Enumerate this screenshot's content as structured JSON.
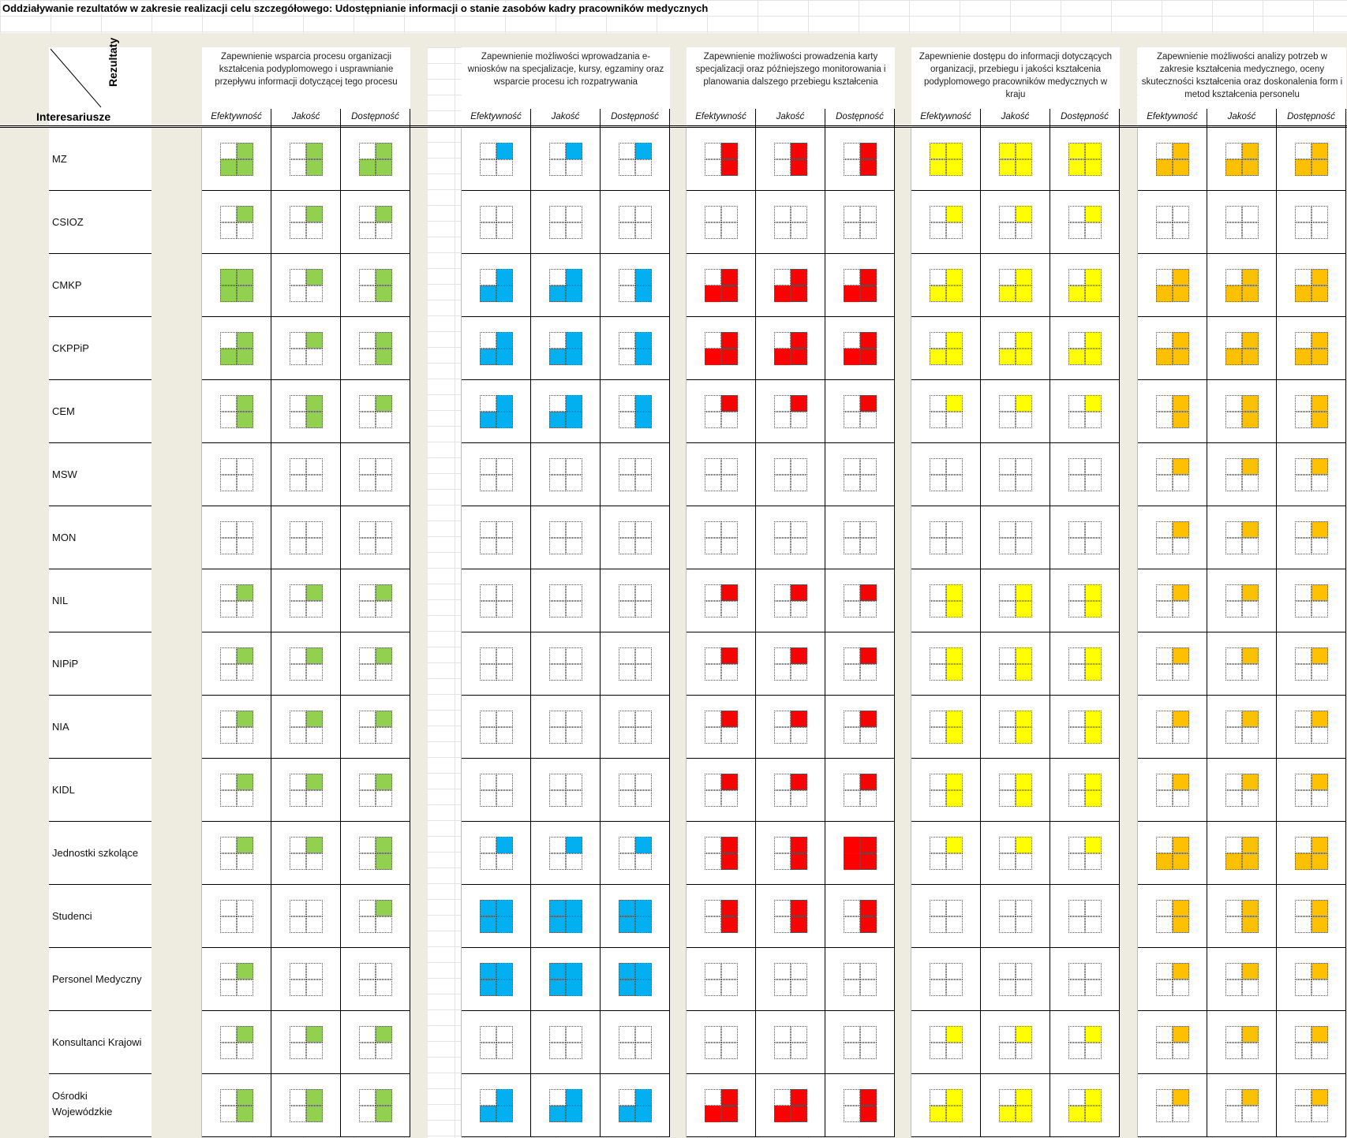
{
  "title": "Oddziaływanie rezultatów w zakresie realizacji celu szczegółowego: Udostępnianie informacji o stanie zasobów kadry pracowników medycznych",
  "corner": {
    "columns_label": "Rezultaty",
    "rows_label": "Interesariusze"
  },
  "colors": {
    "green": "#92d050",
    "blue": "#00b0f0",
    "red": "#ff0000",
    "yellow": "#ffff00",
    "orange": "#ffc000"
  },
  "subheaders": [
    "Efektywność",
    "Jakość",
    "Dostępność"
  ],
  "groups": [
    {
      "label": "Zapewnienie wsparcia procesu organizacji kształcenia podyplomowego i usprawnianie przepływu informacji dotyczącej tego procesu",
      "color": "green"
    },
    {
      "label": "Zapewnienie możliwości wprowadzania e-wniosków na specjalizacje, kursy, egzaminy oraz wsparcie procesu ich rozpatrywania",
      "color": "blue"
    },
    {
      "label": "Zapewnienie możliwości prowadzenia karty specjalizacji oraz późniejszego monitorowania i planowania dalszego przebiegu kształcenia",
      "color": "red"
    },
    {
      "label": "Zapewnienie dostępu do informacji dotyczących organizacji, przebiegu i jakości kształcenia podyplomowego pracowników medycznych w kraju",
      "color": "yellow"
    },
    {
      "label": "Zapewnienie możliwości analizy potrzeb w zakresie kształcenia medycznego, oceny skuteczności kształcenia oraz doskonalenia form i metod kształcenia personelu",
      "color": "orange"
    }
  ],
  "rows": [
    {
      "name": "MZ",
      "cells": [
        [
          "tr,bl,br",
          "tr,br",
          "tr,bl,br"
        ],
        [
          "tr",
          "tr",
          "tr"
        ],
        [
          "tr,br",
          "tr,br",
          "tr,br"
        ],
        [
          "tl,tr,bl,br",
          "tl,tr,bl,br",
          "tl,tr,bl,br"
        ],
        [
          "tr,bl,br",
          "tr,bl,br",
          "tr,bl,br"
        ]
      ]
    },
    {
      "name": "CSIOZ",
      "cells": [
        [
          "tr",
          "tr",
          "tr"
        ],
        [
          "",
          "",
          ""
        ],
        [
          "",
          "",
          ""
        ],
        [
          "tr",
          "tr",
          "tr"
        ],
        [
          "",
          "",
          ""
        ]
      ]
    },
    {
      "name": "CMKP",
      "cells": [
        [
          "tl,tr,bl,br",
          "tr",
          "tr,br"
        ],
        [
          "tr,bl,br",
          "tr,bl,br",
          "tr,br"
        ],
        [
          "tr,bl,br",
          "tr,bl,br",
          "tr,bl,br"
        ],
        [
          "tr,bl,br",
          "tr,bl,br",
          "tr,bl,br"
        ],
        [
          "tr,bl,br",
          "tr,bl,br",
          "tr,bl,br"
        ]
      ]
    },
    {
      "name": "CKPPiP",
      "cells": [
        [
          "tr,bl,br",
          "tr",
          "tr,br"
        ],
        [
          "tr,bl,br",
          "tr,bl,br",
          "tr,br"
        ],
        [
          "tr,bl,br",
          "tr,bl,br",
          "tr,bl,br"
        ],
        [
          "tr,bl,br",
          "tr,bl,br",
          "tr,bl,br"
        ],
        [
          "tr,bl,br",
          "tr,bl,br",
          "tr,bl,br"
        ]
      ]
    },
    {
      "name": "CEM",
      "cells": [
        [
          "tr,br",
          "tr,br",
          "tr"
        ],
        [
          "tr,bl,br",
          "tr,bl,br",
          "tr,br"
        ],
        [
          "tr",
          "tr",
          "tr"
        ],
        [
          "tr",
          "tr",
          "tr"
        ],
        [
          "tr,br",
          "tr,br",
          "tr,br"
        ]
      ]
    },
    {
      "name": "MSW",
      "cells": [
        [
          "",
          "",
          ""
        ],
        [
          "",
          "",
          ""
        ],
        [
          "",
          "",
          ""
        ],
        [
          "",
          "",
          ""
        ],
        [
          "tr",
          "tr",
          "tr"
        ]
      ]
    },
    {
      "name": "MON",
      "cells": [
        [
          "",
          "",
          ""
        ],
        [
          "",
          "",
          ""
        ],
        [
          "",
          "",
          ""
        ],
        [
          "",
          "",
          ""
        ],
        [
          "tr",
          "tr",
          "tr"
        ]
      ]
    },
    {
      "name": "NIL",
      "cells": [
        [
          "tr",
          "tr",
          "tr"
        ],
        [
          "",
          "",
          ""
        ],
        [
          "tr",
          "tr",
          "tr"
        ],
        [
          "tr,br",
          "tr,br",
          "tr,br"
        ],
        [
          "tr",
          "tr",
          "tr"
        ]
      ]
    },
    {
      "name": "NIPiP",
      "cells": [
        [
          "tr",
          "tr",
          "tr"
        ],
        [
          "",
          "",
          ""
        ],
        [
          "tr",
          "tr",
          "tr"
        ],
        [
          "tr,br",
          "tr,br",
          "tr,br"
        ],
        [
          "tr",
          "tr",
          "tr"
        ]
      ]
    },
    {
      "name": "NIA",
      "cells": [
        [
          "tr",
          "tr",
          "tr"
        ],
        [
          "",
          "",
          ""
        ],
        [
          "tr",
          "tr",
          "tr"
        ],
        [
          "tr,br",
          "tr,br",
          "tr,br"
        ],
        [
          "tr",
          "tr",
          "tr"
        ]
      ]
    },
    {
      "name": "KIDL",
      "cells": [
        [
          "tr",
          "tr",
          "tr"
        ],
        [
          "",
          "",
          ""
        ],
        [
          "tr",
          "tr",
          "tr"
        ],
        [
          "tr,br",
          "tr,br",
          "tr,br"
        ],
        [
          "tr",
          "tr",
          "tr"
        ]
      ]
    },
    {
      "name": "Jednostki szkolące",
      "cells": [
        [
          "tr",
          "tr",
          "tr,br"
        ],
        [
          "tr",
          "tr",
          "tr"
        ],
        [
          "tr,br",
          "tr,br",
          "tl,tr,bl,br"
        ],
        [
          "tr",
          "tr",
          "tr"
        ],
        [
          "tr,bl,br",
          "tr,bl,br",
          "tr,bl,br"
        ]
      ]
    },
    {
      "name": "Studenci",
      "cells": [
        [
          "",
          "",
          "tr"
        ],
        [
          "tl,tr,bl,br",
          "tl,tr,bl,br",
          "tl,tr,bl,br"
        ],
        [
          "tr,br",
          "tr,br",
          "tr,br"
        ],
        [
          "",
          "",
          ""
        ],
        [
          "tr,br",
          "tr,br",
          "tr,br"
        ]
      ]
    },
    {
      "name": "Personel Medyczny",
      "cells": [
        [
          "tr",
          "",
          ""
        ],
        [
          "tl,tr,bl,br",
          "tl,tr,bl,br",
          "tl,tr,bl,br"
        ],
        [
          "",
          "",
          ""
        ],
        [
          "",
          "",
          ""
        ],
        [
          "tr",
          "tr",
          "tr"
        ]
      ]
    },
    {
      "name": "Konsultanci Krajowi",
      "cells": [
        [
          "tr",
          "tr",
          "tr"
        ],
        [
          "",
          "",
          ""
        ],
        [
          "",
          "",
          ""
        ],
        [
          "tr",
          "tr",
          "tr"
        ],
        [
          "tr",
          "tr",
          "tr"
        ]
      ]
    },
    {
      "name": "Ośrodki Wojewódzkie",
      "cells": [
        [
          "tr,br",
          "tr,br",
          "tr,br"
        ],
        [
          "tr,bl,br",
          "tr,bl,br",
          "tr,bl,br"
        ],
        [
          "tr,bl,br",
          "tr,bl,br",
          "tr,br"
        ],
        [
          "tr,bl,br",
          "tr,bl,br",
          "tr,bl,br"
        ],
        [
          "tr",
          "tr",
          "tr"
        ]
      ]
    }
  ]
}
